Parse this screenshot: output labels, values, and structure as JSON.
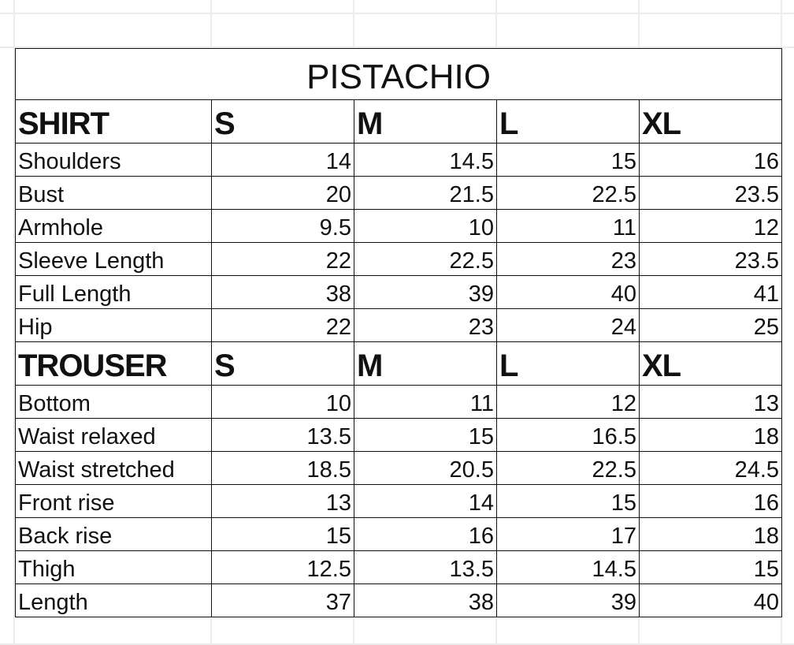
{
  "title": "PISTACHIO",
  "sections": [
    {
      "name": "SHIRT",
      "sizes": [
        "S",
        "M",
        "L",
        "XL"
      ],
      "rows": [
        {
          "label": "Shoulders",
          "values": [
            "14",
            "14.5",
            "15",
            "16"
          ]
        },
        {
          "label": "Bust",
          "values": [
            "20",
            "21.5",
            "22.5",
            "23.5"
          ]
        },
        {
          "label": "Armhole",
          "values": [
            "9.5",
            "10",
            "11",
            "12"
          ]
        },
        {
          "label": "Sleeve Length",
          "values": [
            "22",
            "22.5",
            "23",
            "23.5"
          ]
        },
        {
          "label": "Full Length",
          "values": [
            "38",
            "39",
            "40",
            "41"
          ]
        },
        {
          "label": "Hip",
          "values": [
            "22",
            "23",
            "24",
            "25"
          ]
        }
      ]
    },
    {
      "name": "TROUSER",
      "sizes": [
        "S",
        "M",
        "L",
        "XL"
      ],
      "rows": [
        {
          "label": "Bottom",
          "values": [
            "10",
            "11",
            "12",
            "13"
          ]
        },
        {
          "label": "Waist relaxed",
          "values": [
            "13.5",
            "15",
            "16.5",
            "18"
          ]
        },
        {
          "label": "Waist stretched",
          "values": [
            "18.5",
            "20.5",
            "22.5",
            "24.5"
          ]
        },
        {
          "label": "Front rise",
          "values": [
            "13",
            "14",
            "15",
            "16"
          ]
        },
        {
          "label": "Back rise",
          "values": [
            "15",
            "16",
            "17",
            "18"
          ]
        },
        {
          "label": "Thigh",
          "values": [
            "12.5",
            "13.5",
            "14.5",
            "15"
          ]
        },
        {
          "label": "Length",
          "values": [
            "37",
            "38",
            "39",
            "40"
          ]
        }
      ]
    }
  ]
}
